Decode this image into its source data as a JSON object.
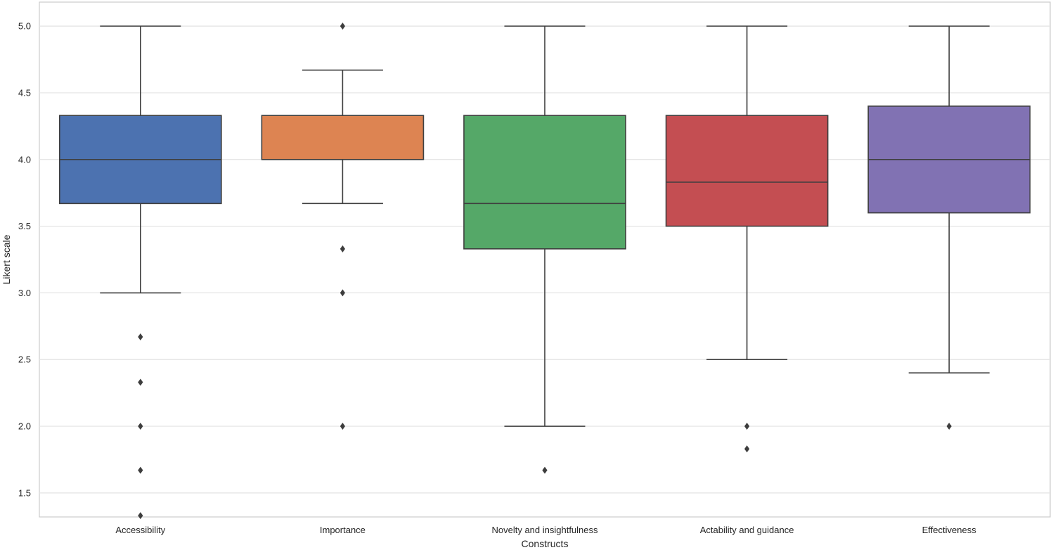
{
  "chart_data": {
    "type": "box",
    "xlabel": "Constructs",
    "ylabel": "Likert scale",
    "ylim": [
      1.32,
      5.18
    ],
    "yticks": [
      "1.5",
      "2.0",
      "2.5",
      "3.0",
      "3.5",
      "4.0",
      "4.5",
      "5.0"
    ],
    "grid": "horizontal",
    "legend": "none",
    "boxes": [
      {
        "category": "Accessibility",
        "color": "#4c72b0",
        "whisker_low": 3.0,
        "q1": 3.67,
        "median": 4.0,
        "q3": 4.33,
        "whisker_high": 5.0,
        "outliers": [
          2.67,
          2.33,
          2.0,
          1.67,
          1.33
        ]
      },
      {
        "category": "Importance",
        "color": "#dd8452",
        "whisker_low": 3.67,
        "q1": 4.0,
        "median": 4.0,
        "q3": 4.33,
        "whisker_high": 4.67,
        "outliers": [
          5.0,
          3.33,
          3.0,
          2.0
        ]
      },
      {
        "category": "Novelty and insightfulness",
        "color": "#55a868",
        "whisker_low": 2.0,
        "q1": 3.33,
        "median": 3.67,
        "q3": 4.33,
        "whisker_high": 5.0,
        "outliers": [
          1.67
        ]
      },
      {
        "category": "Actability and guidance",
        "color": "#c44e52",
        "whisker_low": 2.5,
        "q1": 3.5,
        "median": 3.83,
        "q3": 4.33,
        "whisker_high": 5.0,
        "outliers": [
          2.0,
          1.83
        ]
      },
      {
        "category": "Effectiveness",
        "color": "#8172b3",
        "whisker_low": 2.4,
        "q1": 3.6,
        "median": 4.0,
        "q3": 4.4,
        "whisker_high": 5.0,
        "outliers": [
          2.0
        ]
      }
    ]
  }
}
